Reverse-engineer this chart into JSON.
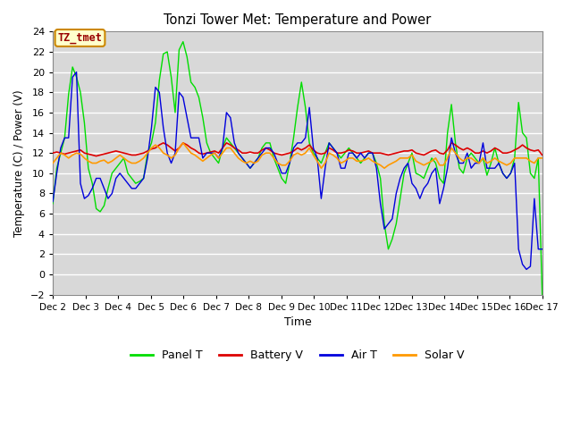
{
  "title": "Tonzi Tower Met: Temperature and Power",
  "xlabel": "Time",
  "ylabel": "Temperature (C) / Power (V)",
  "timezone_label": "TZ_tmet",
  "ylim": [
    -2,
    24
  ],
  "yticks": [
    -2,
    0,
    2,
    4,
    6,
    8,
    10,
    12,
    14,
    16,
    18,
    20,
    22,
    24
  ],
  "xtick_labels": [
    "Dec 2",
    "Dec 3",
    "Dec 4",
    "Dec 5",
    "Dec 6",
    "Dec 7",
    "Dec 8",
    "Dec 9",
    "Dec 10",
    "Dec 11",
    "Dec 12",
    "Dec 13",
    "Dec 14",
    "Dec 15",
    "Dec 16",
    "Dec 17"
  ],
  "fig_bg": "#f0f0f0",
  "plot_bg": "#d8d8d8",
  "grid_color": "#ffffff",
  "colors": {
    "panel_t": "#00dd00",
    "battery_v": "#dd0000",
    "air_t": "#0000dd",
    "solar_v": "#ff9900"
  },
  "legend_labels": [
    "Panel T",
    "Battery V",
    "Air T",
    "Solar V"
  ],
  "panel_t": [
    7.0,
    10.5,
    12.0,
    13.5,
    17.8,
    20.5,
    19.5,
    18.0,
    15.0,
    10.5,
    9.0,
    6.5,
    6.2,
    6.8,
    8.5,
    10.0,
    10.5,
    11.0,
    11.5,
    10.0,
    9.5,
    9.0,
    9.2,
    9.5,
    12.0,
    13.0,
    15.0,
    19.2,
    21.8,
    22.0,
    19.5,
    16.0,
    22.2,
    23.0,
    21.5,
    19.0,
    18.5,
    17.5,
    15.5,
    13.0,
    12.0,
    11.5,
    11.0,
    12.5,
    13.5,
    13.0,
    12.5,
    12.0,
    11.5,
    11.0,
    10.5,
    11.0,
    11.5,
    12.5,
    13.0,
    13.0,
    11.5,
    10.5,
    9.5,
    9.0,
    11.0,
    13.5,
    16.5,
    19.0,
    16.5,
    13.0,
    12.0,
    11.5,
    11.0,
    12.0,
    13.0,
    12.5,
    12.0,
    11.5,
    12.0,
    12.5,
    12.0,
    11.5,
    11.0,
    11.5,
    12.0,
    12.0,
    11.0,
    9.5,
    5.0,
    2.5,
    3.5,
    5.0,
    7.5,
    10.0,
    11.0,
    12.0,
    10.0,
    9.8,
    9.5,
    10.5,
    11.5,
    11.0,
    9.5,
    9.0,
    14.0,
    16.8,
    13.0,
    10.5,
    10.0,
    11.5,
    12.0,
    11.5,
    11.0,
    11.5,
    9.8,
    11.0,
    12.5,
    11.0,
    10.0,
    9.5,
    10.0,
    11.5,
    17.0,
    14.0,
    13.5,
    10.0,
    9.5,
    11.5,
    -2.0
  ],
  "battery_v": [
    12.0,
    12.1,
    12.0,
    11.9,
    12.0,
    12.1,
    12.2,
    12.3,
    12.0,
    11.9,
    11.8,
    11.7,
    11.8,
    11.9,
    12.0,
    12.1,
    12.2,
    12.1,
    12.0,
    11.9,
    11.8,
    11.8,
    11.9,
    12.0,
    12.2,
    12.4,
    12.5,
    12.8,
    13.0,
    12.8,
    12.5,
    12.2,
    12.5,
    13.0,
    12.8,
    12.5,
    12.3,
    12.0,
    11.9,
    12.0,
    12.1,
    12.2,
    12.0,
    12.5,
    13.0,
    12.8,
    12.5,
    12.3,
    12.0,
    12.0,
    12.1,
    12.0,
    12.0,
    12.3,
    12.5,
    12.3,
    12.0,
    11.9,
    11.8,
    11.9,
    12.0,
    12.2,
    12.5,
    12.3,
    12.5,
    12.8,
    12.3,
    12.0,
    11.9,
    12.0,
    12.5,
    12.3,
    12.0,
    12.0,
    12.1,
    12.3,
    12.2,
    12.0,
    12.0,
    12.1,
    12.2,
    12.0,
    12.0,
    12.0,
    11.9,
    11.8,
    11.9,
    12.0,
    12.1,
    12.2,
    12.2,
    12.3,
    12.0,
    11.9,
    11.8,
    12.0,
    12.2,
    12.3,
    12.0,
    11.9,
    12.3,
    13.0,
    12.8,
    12.5,
    12.3,
    12.5,
    12.3,
    12.0,
    12.0,
    12.2,
    12.0,
    12.2,
    12.5,
    12.3,
    12.0,
    12.0,
    12.1,
    12.3,
    12.5,
    12.8,
    12.5,
    12.3,
    12.2,
    12.3,
    11.8
  ],
  "air_t": [
    7.2,
    10.0,
    12.5,
    13.5,
    13.5,
    19.5,
    20.0,
    9.0,
    7.5,
    7.8,
    8.5,
    9.5,
    9.5,
    8.5,
    7.5,
    8.0,
    9.5,
    10.0,
    9.5,
    9.0,
    8.5,
    8.5,
    9.0,
    9.5,
    11.5,
    14.5,
    18.5,
    18.0,
    14.5,
    12.0,
    11.0,
    12.0,
    18.0,
    17.5,
    15.5,
    13.5,
    13.5,
    13.5,
    11.5,
    12.0,
    12.0,
    12.0,
    11.5,
    12.5,
    16.0,
    15.5,
    13.0,
    12.0,
    11.5,
    11.0,
    10.5,
    11.0,
    11.5,
    12.0,
    12.5,
    12.5,
    12.0,
    11.0,
    10.0,
    10.0,
    11.0,
    12.5,
    13.0,
    13.0,
    13.5,
    16.5,
    12.5,
    11.5,
    7.5,
    10.5,
    13.0,
    12.5,
    12.0,
    10.5,
    10.5,
    12.0,
    12.0,
    11.5,
    12.0,
    11.5,
    12.0,
    12.0,
    10.5,
    7.0,
    4.5,
    5.0,
    5.5,
    8.0,
    9.5,
    10.5,
    11.0,
    9.0,
    8.5,
    7.5,
    8.5,
    9.0,
    10.0,
    10.5,
    7.0,
    8.5,
    10.5,
    13.5,
    12.0,
    11.0,
    11.0,
    12.0,
    10.5,
    11.0,
    11.0,
    13.0,
    10.5,
    10.5,
    10.5,
    11.0,
    10.0,
    9.5,
    10.0,
    11.0,
    2.5,
    1.0,
    0.5,
    0.8,
    7.5,
    2.5,
    2.5
  ],
  "solar_v": [
    11.0,
    11.5,
    12.0,
    11.8,
    11.5,
    11.8,
    12.0,
    11.9,
    11.5,
    11.2,
    11.0,
    11.0,
    11.2,
    11.3,
    11.0,
    11.2,
    11.5,
    11.8,
    11.5,
    11.2,
    11.0,
    11.0,
    11.2,
    11.5,
    12.0,
    12.5,
    12.8,
    12.5,
    12.0,
    11.8,
    11.5,
    11.8,
    12.5,
    13.0,
    12.5,
    12.0,
    11.8,
    11.5,
    11.2,
    11.5,
    11.8,
    12.0,
    11.5,
    12.0,
    12.5,
    12.5,
    12.0,
    11.5,
    11.2,
    11.0,
    11.2,
    11.0,
    11.2,
    11.8,
    12.0,
    12.0,
    11.5,
    11.0,
    10.8,
    10.8,
    11.2,
    11.8,
    12.0,
    11.8,
    12.0,
    12.5,
    11.8,
    11.2,
    10.5,
    11.0,
    12.0,
    11.8,
    11.5,
    11.0,
    11.2,
    11.5,
    11.5,
    11.2,
    11.2,
    11.3,
    11.5,
    11.2,
    11.0,
    10.8,
    10.5,
    10.8,
    11.0,
    11.2,
    11.5,
    11.5,
    11.5,
    11.8,
    11.2,
    11.0,
    10.8,
    11.0,
    11.2,
    11.5,
    10.8,
    10.8,
    11.5,
    12.5,
    12.0,
    11.5,
    11.2,
    11.5,
    11.5,
    11.2,
    11.0,
    11.5,
    11.0,
    11.2,
    11.5,
    11.2,
    11.0,
    10.8,
    11.0,
    11.5,
    11.5,
    11.5,
    11.5,
    11.2,
    11.0,
    11.5,
    11.5
  ]
}
